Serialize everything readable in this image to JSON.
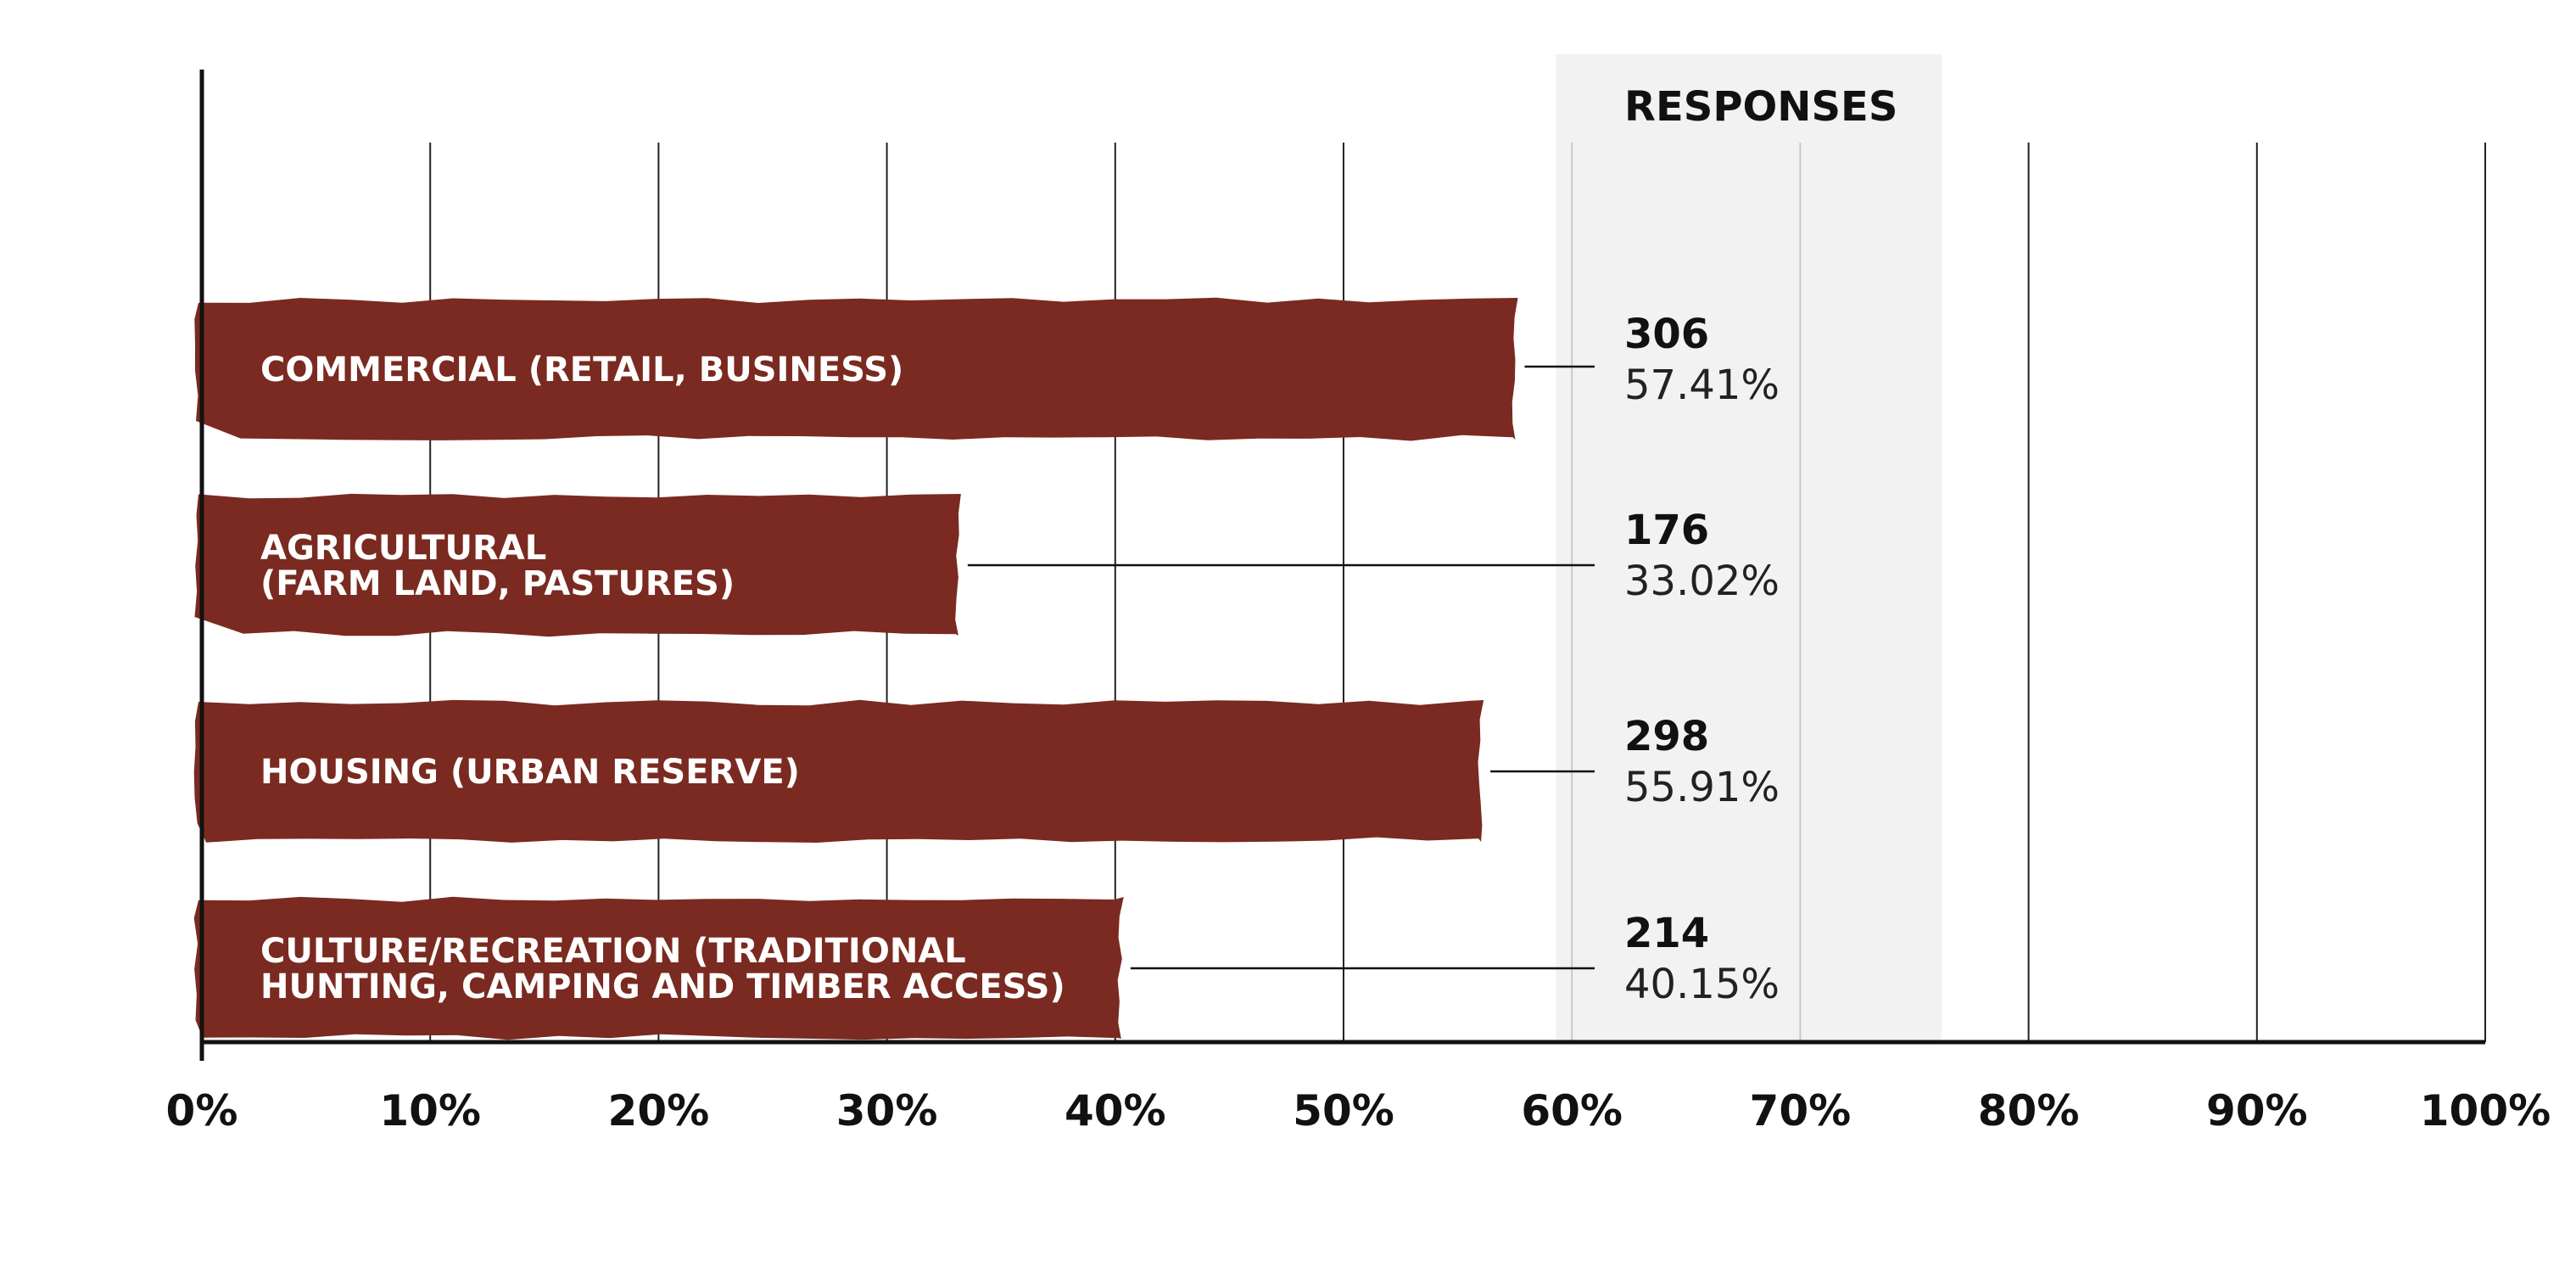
{
  "chart_data": {
    "type": "bar",
    "orientation": "horizontal",
    "title": "",
    "xlabel": "",
    "ylabel": "",
    "xlim": [
      0,
      100
    ],
    "x_ticks": [
      0,
      10,
      20,
      30,
      40,
      50,
      60,
      70,
      80,
      90,
      100
    ],
    "x_tick_labels": [
      "0%",
      "10%",
      "20%",
      "30%",
      "40%",
      "50%",
      "60%",
      "70%",
      "80%",
      "90%",
      "100%"
    ],
    "responses_header": "RESPONSES",
    "categories": [
      [
        "COMMERCIAL (RETAIL, BUSINESS)"
      ],
      [
        "AGRICULTURAL",
        "(FARM LAND, PASTURES)"
      ],
      [
        "HOUSING (URBAN RESERVE)"
      ],
      [
        "CULTURE/RECREATION (TRADITIONAL",
        "HUNTING, CAMPING AND TIMBER ACCESS)"
      ]
    ],
    "values": [
      57.41,
      33.02,
      55.91,
      40.15
    ],
    "counts": [
      "306",
      "176",
      "298",
      "214"
    ],
    "percent_labels": [
      "57.41%",
      "33.02%",
      "55.91%",
      "40.15%"
    ],
    "grid": true,
    "responses_band": [
      59.3,
      76.2
    ]
  },
  "colors": {
    "bar": "#7a2a20",
    "band": "#f2f2f2",
    "axis": "#111111",
    "grid": "#222222",
    "leader": "#111111"
  }
}
